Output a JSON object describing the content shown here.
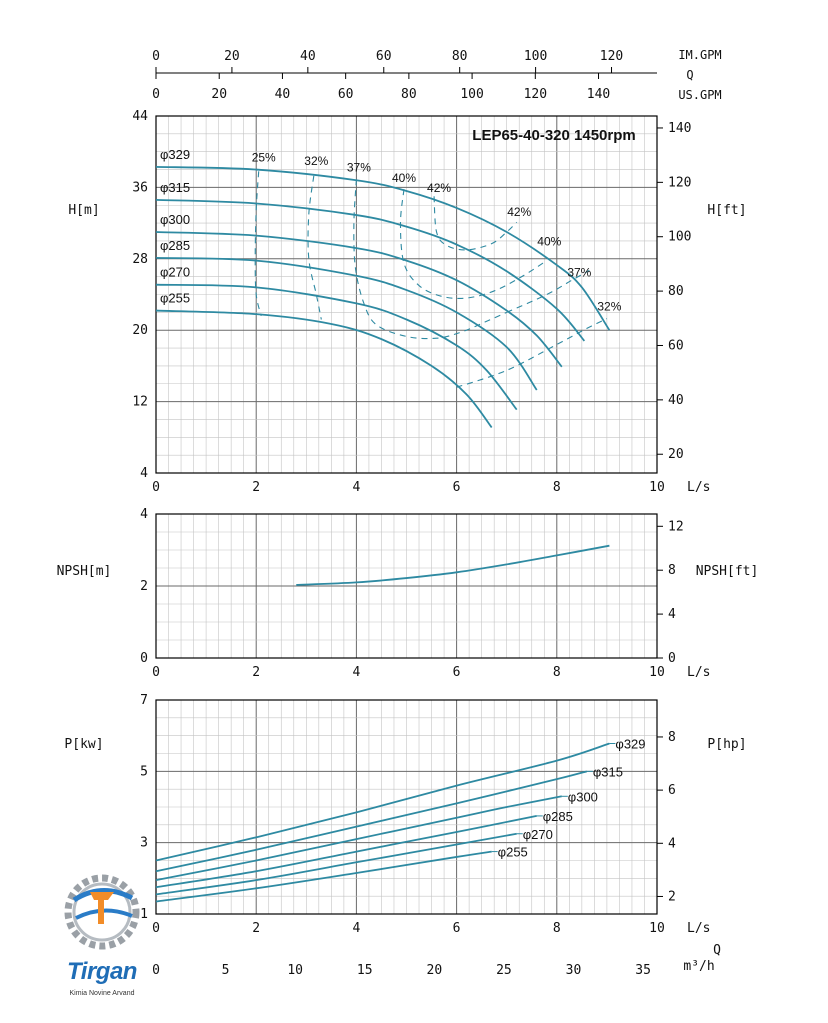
{
  "colors": {
    "curve": "#2e8aa2",
    "grid_major": "#6a6a6a",
    "grid_minor": "#c4c4c4",
    "axis": "#000000"
  },
  "top_scale": {
    "im_gpm": {
      "label": "IM.GPM",
      "ticks": [
        "0",
        "20",
        "40",
        "60",
        "80",
        "100",
        "120"
      ]
    },
    "q_label": "Q",
    "us_gpm": {
      "label": "US.GPM",
      "ticks": [
        "0",
        "20",
        "40",
        "60",
        "80",
        "100",
        "120",
        "140"
      ]
    }
  },
  "chart_data": [
    {
      "type": "line",
      "name": "head",
      "title": "LEP65-40-320 1450rpm",
      "xlabel": "L/s",
      "ylabel": "H[m]",
      "ylabel_right": "H[ft]",
      "xlim": [
        0,
        10
      ],
      "ylim": [
        4,
        44
      ],
      "ylim_right_ft": [
        13.1,
        144.4
      ],
      "x_ticks": [
        "0",
        "2",
        "4",
        "6",
        "8",
        "10"
      ],
      "y_ticks": [
        "4",
        "12",
        "20",
        "28",
        "36",
        "44"
      ],
      "y_ticks_right": [
        "20",
        "40",
        "60",
        "80",
        "100",
        "120",
        "140"
      ],
      "grid": true,
      "series": [
        {
          "name": "φ329",
          "x": [
            0,
            2,
            4,
            5,
            6,
            7,
            8,
            8.5,
            9.05
          ],
          "y": [
            38.3,
            38.0,
            36.8,
            35.6,
            33.7,
            31.0,
            27.3,
            24.8,
            20.0
          ]
        },
        {
          "name": "φ315",
          "x": [
            0,
            2,
            4,
            5,
            6,
            7,
            8,
            8.55
          ],
          "y": [
            34.6,
            34.2,
            32.9,
            31.6,
            29.6,
            26.6,
            22.4,
            18.8
          ]
        },
        {
          "name": "φ300",
          "x": [
            0,
            2,
            4,
            5,
            6,
            7,
            7.6,
            8.1
          ],
          "y": [
            31.0,
            30.6,
            29.2,
            27.8,
            25.6,
            22.2,
            19.4,
            15.9
          ]
        },
        {
          "name": "φ285",
          "x": [
            0,
            2,
            4,
            5,
            6,
            7,
            7.6
          ],
          "y": [
            28.1,
            27.8,
            26.1,
            24.5,
            22.0,
            18.1,
            13.3
          ]
        },
        {
          "name": "φ270",
          "x": [
            0,
            2,
            4,
            5,
            6,
            6.6,
            7.2
          ],
          "y": [
            25.1,
            24.8,
            23.0,
            21.2,
            18.3,
            15.5,
            11.1
          ]
        },
        {
          "name": "φ255",
          "x": [
            0,
            2,
            3.5,
            4.5,
            5.5,
            6.2,
            6.7
          ],
          "y": [
            22.2,
            21.8,
            20.7,
            19.0,
            16.0,
            12.8,
            9.1
          ]
        }
      ],
      "efficiency": [
        {
          "label": "25%",
          "points": [
            [
              2.05,
              37.8
            ],
            [
              2.0,
              33.5
            ],
            [
              1.98,
              28.0
            ],
            [
              2.0,
              24.0
            ],
            [
              2.1,
              21.6
            ]
          ]
        },
        {
          "label": "32%",
          "points": [
            [
              3.15,
              37.3
            ],
            [
              3.05,
              33.0
            ],
            [
              3.05,
              28.0
            ],
            [
              3.2,
              24.0
            ],
            [
              3.3,
              21.2
            ]
          ]
        },
        {
          "label": "37%",
          "points": [
            [
              4.0,
              36.9
            ],
            [
              3.95,
              32.0
            ],
            [
              3.98,
              27.0
            ],
            [
              4.15,
              23.0
            ],
            [
              4.4,
              20.6
            ],
            [
              5.0,
              19.3
            ],
            [
              5.6,
              19.1
            ],
            [
              6.1,
              19.8
            ],
            [
              6.6,
              21.0
            ],
            [
              7.0,
              22.0
            ]
          ]
        },
        {
          "label": "40%",
          "points": [
            [
              4.95,
              35.8
            ],
            [
              4.88,
              32.0
            ],
            [
              4.95,
              27.5
            ],
            [
              5.25,
              25.0
            ],
            [
              5.7,
              23.8
            ],
            [
              6.2,
              23.6
            ],
            [
              6.75,
              24.4
            ],
            [
              7.3,
              26.0
            ],
            [
              7.8,
              27.8
            ]
          ]
        },
        {
          "label": "42%",
          "points": [
            [
              5.55,
              35.0
            ],
            [
              5.6,
              31.0
            ],
            [
              5.8,
              29.5
            ],
            [
              6.2,
              29.0
            ],
            [
              6.7,
              29.7
            ],
            [
              7.0,
              31.0
            ],
            [
              7.2,
              32.1
            ]
          ]
        },
        {
          "label": "42%",
          "points": [
            [
              7.2,
              32.1
            ]
          ]
        },
        {
          "label": "40%",
          "points": [
            [
              7.8,
              27.8
            ]
          ]
        },
        {
          "label": "37%",
          "points": [
            [
              7.0,
              22.0
            ],
            [
              7.8,
              24.0
            ],
            [
              8.3,
              25.6
            ],
            [
              8.65,
              26.7
            ]
          ]
        },
        {
          "label": "32%",
          "points": [
            [
              6.0,
              13.6
            ],
            [
              7.0,
              15.5
            ],
            [
              8.0,
              18.4
            ],
            [
              8.6,
              20.2
            ],
            [
              9.0,
              21.3
            ]
          ]
        }
      ],
      "efficiency_labels": [
        {
          "label": "25%",
          "x": 2.15,
          "y": 38.9
        },
        {
          "label": "32%",
          "x": 3.2,
          "y": 38.5
        },
        {
          "label": "37%",
          "x": 4.05,
          "y": 37.8
        },
        {
          "label": "40%",
          "x": 4.95,
          "y": 36.6
        },
        {
          "label": "42%",
          "x": 5.65,
          "y": 35.5
        },
        {
          "label": "42%",
          "x": 7.25,
          "y": 32.8
        },
        {
          "label": "40%",
          "x": 7.85,
          "y": 29.5
        },
        {
          "label": "37%",
          "x": 8.45,
          "y": 26.0
        },
        {
          "label": "32%",
          "x": 9.05,
          "y": 22.2
        }
      ]
    },
    {
      "type": "line",
      "name": "npsh",
      "xlabel": "L/s",
      "ylabel": "NPSH[m]",
      "ylabel_right": "NPSH[ft]",
      "xlim": [
        0,
        10
      ],
      "ylim": [
        0,
        4
      ],
      "ylim_right_ft": [
        0,
        13.12
      ],
      "x_ticks": [
        "0",
        "2",
        "4",
        "6",
        "8",
        "10"
      ],
      "y_ticks": [
        "0",
        "2",
        "4"
      ],
      "y_ticks_right": [
        "0",
        "4",
        "8",
        "12"
      ],
      "grid": true,
      "series": [
        {
          "name": "",
          "x": [
            2.8,
            4.0,
            5.0,
            6.0,
            7.0,
            8.0,
            9.05
          ],
          "y": [
            2.03,
            2.1,
            2.22,
            2.38,
            2.6,
            2.85,
            3.12
          ]
        }
      ]
    },
    {
      "type": "line",
      "name": "power",
      "xlabel": "L/s",
      "ylabel": "P[kw]",
      "ylabel_right": "P[hp]",
      "xlim": [
        0,
        10
      ],
      "ylim": [
        1,
        7
      ],
      "ylim_right_hp": [
        1.34,
        9.39
      ],
      "x_ticks": [
        "0",
        "2",
        "4",
        "6",
        "8",
        "10"
      ],
      "y_ticks": [
        "1",
        "3",
        "5",
        "7"
      ],
      "y_ticks_right": [
        "2",
        "4",
        "6",
        "8"
      ],
      "x2_label": "m³/h",
      "x2_ticks": [
        "0",
        "5",
        "10",
        "15",
        "20",
        "25",
        "30",
        "35"
      ],
      "q_label": "Q",
      "grid": true,
      "series": [
        {
          "name": "φ329",
          "x": [
            0,
            2,
            4,
            6,
            8,
            9.05
          ],
          "y": [
            2.5,
            3.15,
            3.85,
            4.6,
            5.3,
            5.78
          ]
        },
        {
          "name": "φ315",
          "x": [
            0,
            2,
            4,
            6,
            8,
            8.6
          ],
          "y": [
            2.2,
            2.8,
            3.45,
            4.1,
            4.78,
            5.0
          ]
        },
        {
          "name": "φ300",
          "x": [
            0,
            2,
            4,
            6,
            7,
            8.1
          ],
          "y": [
            1.95,
            2.5,
            3.1,
            3.7,
            4.0,
            4.3
          ]
        },
        {
          "name": "φ285",
          "x": [
            0,
            2,
            4,
            6,
            7.6
          ],
          "y": [
            1.75,
            2.2,
            2.75,
            3.3,
            3.75
          ]
        },
        {
          "name": "φ270",
          "x": [
            0,
            2,
            4,
            6,
            7.2
          ],
          "y": [
            1.55,
            1.95,
            2.45,
            2.95,
            3.25
          ]
        },
        {
          "name": "φ255",
          "x": [
            0,
            2,
            4,
            6,
            6.7
          ],
          "y": [
            1.35,
            1.72,
            2.15,
            2.6,
            2.75
          ]
        }
      ]
    }
  ],
  "logo": {
    "word": "Tirgan",
    "subtitle": "Kimia Novine Arvand"
  }
}
